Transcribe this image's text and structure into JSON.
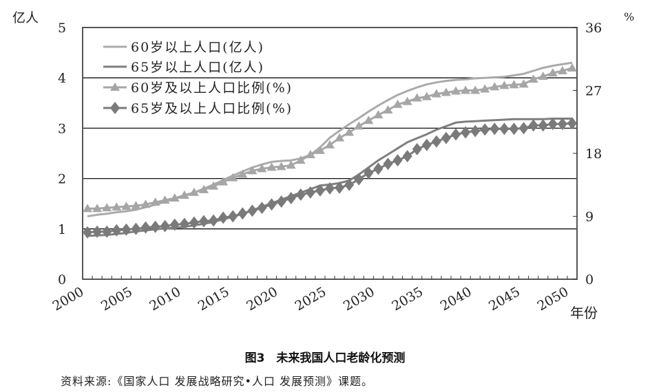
{
  "chart_data": {
    "type": "line",
    "title": "图3　未来我国人口老龄化预测",
    "source": "资料来源:《国家人口 发展战略研究•人口 发展预测》课题。",
    "xlabel": "年份",
    "ylabel_left": "亿人",
    "ylabel_right": "%",
    "xlim": [
      2000,
      2050
    ],
    "ylim_left": [
      0,
      5
    ],
    "ylim_right": [
      0,
      36
    ],
    "yticks_left": [
      "0",
      "1",
      "2",
      "3",
      "4",
      "5"
    ],
    "yticks_right": [
      "0",
      "9",
      "18",
      "27",
      "36"
    ],
    "xticks": [
      "2000",
      "2005",
      "2010",
      "2015",
      "2020",
      "2025",
      "2030",
      "2035",
      "2040",
      "2045",
      "2050"
    ],
    "grid": "horizontal",
    "legend_position": "top-left",
    "x": [
      2000,
      2001,
      2002,
      2003,
      2004,
      2005,
      2006,
      2007,
      2008,
      2009,
      2010,
      2011,
      2012,
      2013,
      2014,
      2015,
      2016,
      2017,
      2018,
      2019,
      2020,
      2021,
      2022,
      2023,
      2024,
      2025,
      2026,
      2027,
      2028,
      2029,
      2030,
      2031,
      2032,
      2033,
      2034,
      2035,
      2036,
      2037,
      2038,
      2039,
      2040,
      2041,
      2042,
      2043,
      2044,
      2045,
      2046,
      2047,
      2048,
      2049,
      2050
    ],
    "series": [
      {
        "name": "60岁以上人口(亿人)",
        "axis": "left",
        "style": "line",
        "color": "#aaaaaa",
        "values": [
          1.25,
          1.28,
          1.3,
          1.33,
          1.35,
          1.38,
          1.43,
          1.48,
          1.54,
          1.6,
          1.65,
          1.72,
          1.8,
          1.88,
          1.97,
          2.06,
          2.14,
          2.22,
          2.28,
          2.33,
          2.35,
          2.36,
          2.4,
          2.47,
          2.62,
          2.81,
          2.95,
          3.08,
          3.2,
          3.33,
          3.45,
          3.56,
          3.66,
          3.74,
          3.81,
          3.87,
          3.91,
          3.94,
          3.96,
          3.97,
          3.99,
          4.0,
          4.01,
          4.02,
          4.05,
          4.08,
          4.14,
          4.2,
          4.24,
          4.27,
          4.3
        ]
      },
      {
        "name": "65岁以上人口(亿人)",
        "axis": "left",
        "style": "line",
        "color": "#7e7e7e",
        "values": [
          0.86,
          0.87,
          0.88,
          0.9,
          0.92,
          0.95,
          0.97,
          0.99,
          1.01,
          1.02,
          1.04,
          1.07,
          1.1,
          1.14,
          1.19,
          1.24,
          1.3,
          1.37,
          1.44,
          1.51,
          1.58,
          1.65,
          1.72,
          1.79,
          1.86,
          1.88,
          1.91,
          1.96,
          2.08,
          2.22,
          2.36,
          2.48,
          2.6,
          2.72,
          2.8,
          2.88,
          2.97,
          3.04,
          3.11,
          3.13,
          3.14,
          3.15,
          3.16,
          3.17,
          3.18,
          3.18,
          3.18,
          3.18,
          3.19,
          3.19,
          3.19
        ]
      },
      {
        "name": "60岁及以上人口比例(%)",
        "axis": "right",
        "style": "triangle",
        "color": "#a6a6a6",
        "values": [
          10.1,
          10.1,
          10.2,
          10.3,
          10.4,
          10.5,
          10.7,
          11.0,
          11.3,
          11.6,
          12.0,
          12.4,
          12.8,
          13.3,
          13.9,
          14.5,
          15.0,
          15.5,
          15.8,
          16.0,
          16.1,
          16.3,
          17.0,
          17.8,
          18.4,
          19.2,
          20.2,
          21.0,
          21.9,
          22.7,
          23.5,
          24.2,
          25.0,
          25.4,
          25.9,
          26.1,
          26.5,
          26.7,
          26.9,
          27.0,
          27.0,
          27.2,
          27.5,
          27.7,
          27.8,
          27.9,
          28.6,
          29.0,
          29.5,
          29.8,
          30.2
        ]
      },
      {
        "name": "65岁及以上人口比例(%)",
        "axis": "right",
        "style": "diamond",
        "color": "#7a7a7a",
        "values": [
          6.7,
          6.8,
          6.8,
          7.0,
          7.1,
          7.2,
          7.4,
          7.5,
          7.6,
          7.8,
          7.9,
          8.1,
          8.3,
          8.4,
          8.8,
          9.0,
          9.4,
          9.8,
          10.2,
          10.7,
          11.1,
          11.6,
          12.1,
          12.4,
          12.7,
          13.0,
          13.1,
          13.5,
          14.3,
          15.2,
          15.8,
          16.5,
          17.0,
          17.6,
          18.6,
          19.2,
          19.7,
          20.2,
          20.7,
          21.0,
          21.2,
          21.4,
          21.5,
          21.5,
          21.5,
          21.6,
          22.0,
          22.0,
          22.2,
          22.2,
          22.3
        ]
      }
    ]
  }
}
